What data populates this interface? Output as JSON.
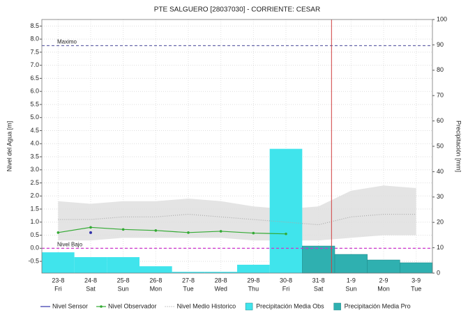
{
  "chart_data": {
    "type": "combo",
    "title": "PTE SALGUERO   [28037030] - CORRIENTE: CESAR",
    "ylabel": "Nivel del Agua [m]",
    "y2label": "Precipitación [mm]",
    "categories": [
      "23-8",
      "24-8",
      "25-8",
      "26-8",
      "27-8",
      "28-8",
      "29-8",
      "30-8",
      "31-8",
      "1-9",
      "2-9",
      "3-9"
    ],
    "weekdays": [
      "Fri",
      "Sat",
      "Sun",
      "Mon",
      "Tue",
      "Wed",
      "Thu",
      "Fri",
      "Sat",
      "Sun",
      "Mon",
      "Tue"
    ],
    "ylim": [
      -0.95,
      8.75
    ],
    "yticks": [
      -0.5,
      {
        "value": 0,
        "label": "0.0"
      },
      0.5,
      {
        "value": 1,
        "label": "1.0"
      },
      1.5,
      {
        "value": 2,
        "label": "2.0"
      },
      2.5,
      {
        "value": 3,
        "label": "3.0"
      },
      3.5,
      {
        "value": 4,
        "label": "4.0"
      },
      4.5,
      {
        "value": 5,
        "label": "5.0"
      },
      5.5,
      {
        "value": 6,
        "label": "6.0"
      },
      6.5,
      {
        "value": 7,
        "label": "7.0"
      },
      7.5,
      {
        "value": 8,
        "label": "8.0"
      },
      8.5
    ],
    "y2lim": [
      0,
      100
    ],
    "y2ticks": [
      0,
      10,
      20,
      30,
      40,
      50,
      60,
      70,
      80,
      90,
      100
    ],
    "grid": true,
    "historic_range": {
      "color": "#e4e4e4",
      "low": [
        0.3,
        0.3,
        0.4,
        0.4,
        0.4,
        0.4,
        0.3,
        0.3,
        0.3,
        0.4,
        0.5,
        0.5
      ],
      "high": [
        1.8,
        1.7,
        1.8,
        1.8,
        1.9,
        1.8,
        1.6,
        1.5,
        1.6,
        2.2,
        2.4,
        2.3
      ]
    },
    "reference_lines": [
      {
        "label": "Maximo",
        "value": 7.75,
        "color": "#6666aa"
      },
      {
        "label": "Nivel Bajo",
        "value": 0,
        "color": "#cc33cc"
      }
    ],
    "now_line": {
      "position": 8.9,
      "color": "#d04040"
    },
    "series": [
      {
        "name": "Nivel Sensor",
        "color": "#3333aa",
        "style": "line",
        "axis": "y",
        "values": [
          null,
          0.6,
          null,
          null,
          null,
          null,
          null,
          null,
          null,
          null,
          null,
          null
        ]
      },
      {
        "name": "Nivel Observador",
        "color": "#33aa33",
        "style": "line-dots",
        "axis": "y",
        "values": [
          0.6,
          0.8,
          0.72,
          0.68,
          0.6,
          0.65,
          0.58,
          0.55,
          null,
          null,
          null,
          null
        ]
      },
      {
        "name": "Nivel Medio Historico",
        "color": "#aaaaaa",
        "style": "dotted",
        "axis": "y",
        "values": [
          1.1,
          1.1,
          1.2,
          1.2,
          1.3,
          1.2,
          1.1,
          1.0,
          0.9,
          1.2,
          1.3,
          1.3
        ]
      },
      {
        "name": "Precipitación Media Obs",
        "color": "#40e4ec",
        "style": "bar",
        "axis": "y2",
        "values": [
          8.2,
          6.3,
          6.3,
          2.7,
          0.5,
          0.5,
          3.3,
          49,
          null,
          null,
          null,
          null
        ]
      },
      {
        "name": "Precipitación Media Pro",
        "color": "#2fb0b0",
        "style": "bar",
        "axis": "y2",
        "values": [
          null,
          null,
          null,
          null,
          null,
          null,
          null,
          null,
          10.7,
          7.4,
          5.2,
          4.1
        ]
      }
    ]
  }
}
